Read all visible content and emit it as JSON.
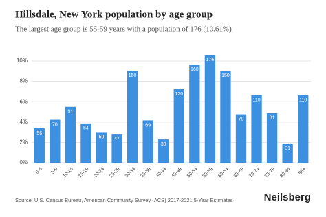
{
  "chart_data": {
    "type": "bar",
    "title": "Hillsdale, New York population by age group",
    "subtitle": "The largest age group is 55-59 years with a population of 176 (10.61%)",
    "source": "Source: U.S. Census Bureau, American Community Survey (ACS) 2017-2021 5-Year Estimates",
    "brand": "Neilsberg",
    "categories": [
      "0-4",
      "5-9",
      "10-14",
      "15-19",
      "20-24",
      "25-29",
      "30-34",
      "35-39",
      "40-44",
      "45-49",
      "50-54",
      "55-59",
      "60-64",
      "65-69",
      "70-74",
      "75-79",
      "80-84",
      "85+"
    ],
    "values": [
      3.38,
      4.22,
      5.49,
      3.86,
      3.01,
      2.83,
      9.04,
      4.16,
      2.29,
      7.23,
      9.64,
      10.61,
      9.04,
      4.76,
      6.63,
      4.88,
      1.87,
      6.63
    ],
    "populations": [
      56,
      70,
      91,
      64,
      50,
      47,
      150,
      69,
      38,
      120,
      160,
      176,
      150,
      79,
      110,
      81,
      31,
      110
    ],
    "color": "#3d8fe0",
    "ylim": [
      0,
      11
    ],
    "yticks": [
      {
        "value": 0,
        "label": "0%"
      },
      {
        "value": 2,
        "label": "2%"
      },
      {
        "value": 4,
        "label": "4%"
      },
      {
        "value": 6,
        "label": "6%"
      },
      {
        "value": 8,
        "label": "8%"
      },
      {
        "value": 10,
        "label": "10%"
      }
    ],
    "grid": true
  }
}
